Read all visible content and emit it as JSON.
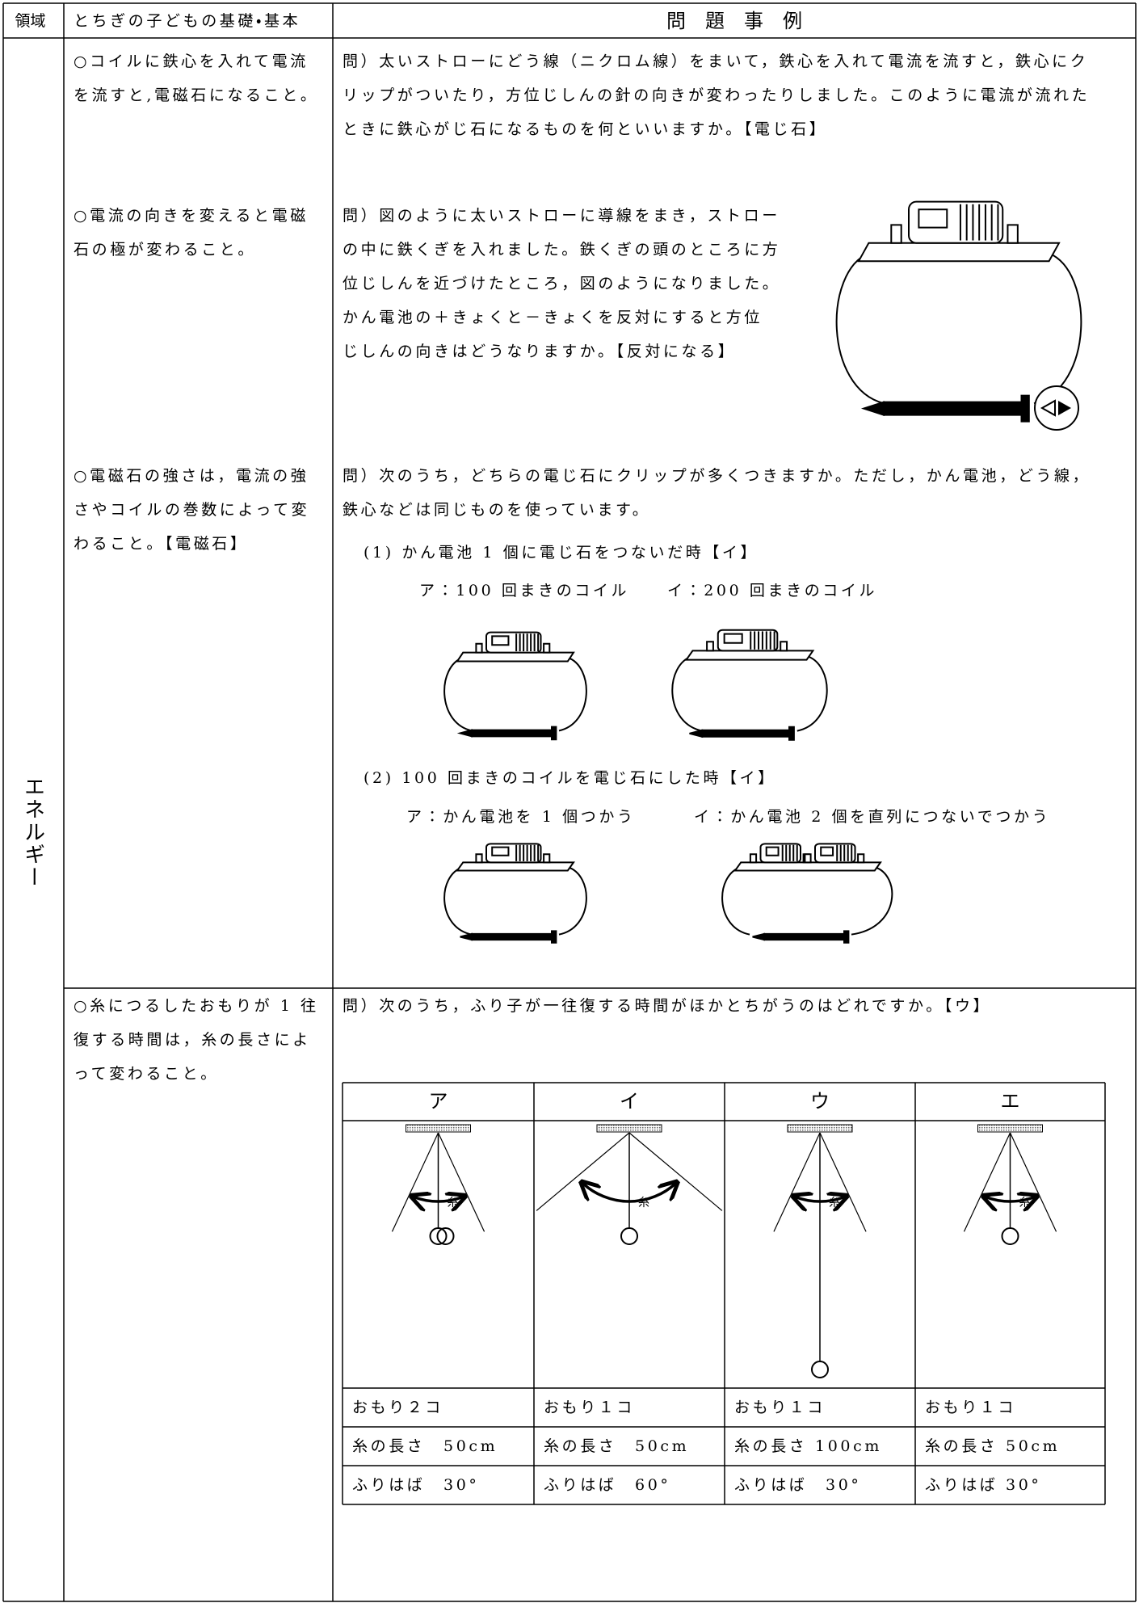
{
  "header": {
    "area": "領域",
    "basics": "とちぎの子どもの基礎・基本",
    "examples": "問　題　事　例"
  },
  "area": "エネルギー",
  "items": [
    {
      "basic_lines": [
        "○コイルに鉄心を入れて電流",
        "を流すと,電磁石になること。"
      ],
      "question_lines": [
        "問）太いストローにどう線（ニクロム線）をまいて，鉄心を入れて電流を流すと，鉄心にク",
        "リップがついたり，方位じしんの針の向きが変わったりしました。このように電流が流れた",
        "ときに鉄心がじ石になるものを何といいますか。【電じ石】"
      ]
    },
    {
      "basic_lines": [
        "○電流の向きを変えると電磁",
        "石の極が変わること。"
      ],
      "question_lines": [
        "問）図のように太いストローに導線をまき，ストロー",
        "の中に鉄くぎを入れました。鉄くぎの頭のところに方",
        "位じしんを近づけたところ，図のようになりました。",
        "かん電池の＋きょくと－きょくを反対にすると方位",
        "じしんの向きはどうなりますか。【反対になる】"
      ]
    },
    {
      "basic_lines": [
        "○電磁石の強さは，電流の強",
        "さやコイルの巻数によって変",
        "わること。【電磁石】"
      ],
      "question_lines": [
        "問）次のうち，どちらの電じ石にクリップが多くつきますか。ただし，かん電池，どう線，",
        "鉄心などは同じものを使っています。"
      ],
      "sub_questions": [
        {
          "label": "(1) かん電池 1 個に電じ石をつないだ時【イ】",
          "options": [
            "ア：100 回まきのコイル",
            "イ：200 回まきのコイル"
          ]
        },
        {
          "label": "(2) 100 回まきのコイルを電じ石にした時【イ】",
          "options": [
            "ア：かん電池を 1 個つかう",
            "イ：かん電池 2 個を直列につないでつかう"
          ]
        }
      ]
    },
    {
      "basic_lines": [
        "○糸につるしたおもりが 1 往",
        "復する時間は，糸の長さによ",
        "って変わること。"
      ],
      "question_lines": [
        "問）次のうち，ふり子が一往復する時間がほかとちがうのはどれですか。【ウ】"
      ],
      "pendulums": [
        {
          "head": "ア",
          "string": "糸",
          "weight": "おもり２コ",
          "length": "糸の長さ　50cm",
          "amplitude": "ふりはば　30°"
        },
        {
          "head": "イ",
          "string": "糸",
          "weight": "おもり１コ",
          "length": "糸の長さ　50cm",
          "amplitude": "ふりはば　60°"
        },
        {
          "head": "ウ",
          "string": "糸",
          "weight": "おもり１コ",
          "length": "糸の長さ 100cm",
          "amplitude": "ふりはば　30°"
        },
        {
          "head": "エ",
          "string": "糸",
          "weight": "おもり１コ",
          "length": "糸の長さ 50cm",
          "amplitude": "ふりはば 30°"
        }
      ]
    }
  ]
}
